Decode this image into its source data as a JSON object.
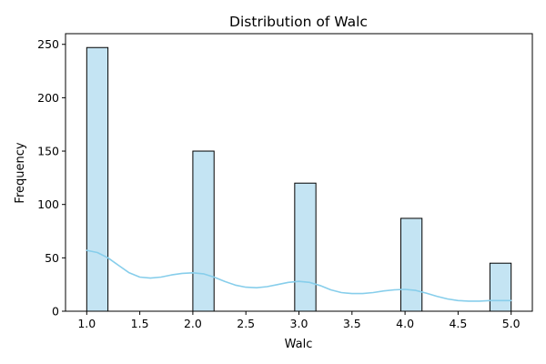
{
  "chart_data": {
    "type": "bar",
    "title": "Distribution of Walc",
    "xlabel": "Walc",
    "ylabel": "Frequency",
    "xlim": [
      0.8,
      5.2
    ],
    "ylim": [
      0,
      260
    ],
    "x_ticks": [
      1.0,
      1.5,
      2.0,
      2.5,
      3.0,
      3.5,
      4.0,
      4.5,
      5.0
    ],
    "x_tick_labels": [
      "1.0",
      "1.5",
      "2.0",
      "2.5",
      "3.0",
      "3.5",
      "4.0",
      "4.5",
      "5.0"
    ],
    "y_ticks": [
      0,
      50,
      100,
      150,
      200,
      250
    ],
    "y_tick_labels": [
      "0",
      "50",
      "100",
      "150",
      "200",
      "250"
    ],
    "bars": [
      {
        "x0": 1.0,
        "x1": 1.2,
        "value": 247
      },
      {
        "x0": 2.0,
        "x1": 2.2,
        "value": 150
      },
      {
        "x0": 2.96,
        "x1": 3.16,
        "value": 120
      },
      {
        "x0": 3.96,
        "x1": 4.16,
        "value": 87
      },
      {
        "x0": 4.8,
        "x1": 5.0,
        "value": 45
      }
    ],
    "kde": {
      "x": [
        1.0,
        1.1,
        1.2,
        1.3,
        1.4,
        1.5,
        1.6,
        1.7,
        1.8,
        1.9,
        2.0,
        2.1,
        2.2,
        2.3,
        2.4,
        2.5,
        2.6,
        2.7,
        2.8,
        2.9,
        3.0,
        3.1,
        3.2,
        3.3,
        3.4,
        3.5,
        3.6,
        3.7,
        3.8,
        3.9,
        4.0,
        4.1,
        4.2,
        4.3,
        4.4,
        4.5,
        4.6,
        4.7,
        4.8,
        4.9,
        5.0
      ],
      "y": [
        57,
        55,
        50,
        43,
        36,
        32,
        31,
        32,
        34,
        35.5,
        36,
        35,
        32,
        28,
        24.5,
        22.5,
        22,
        23,
        25,
        27,
        28,
        27,
        24,
        20,
        17.5,
        16.5,
        16.5,
        17.5,
        19,
        20,
        20.5,
        19.5,
        17,
        14,
        11.5,
        10,
        9.5,
        9.5,
        10,
        10,
        10
      ]
    },
    "grid": false,
    "legend": "none",
    "colors": {
      "bar_fill": "#c4e4f3",
      "bar_edge": "#000000",
      "kde_line": "#87ceeb",
      "axes": "#000000"
    }
  }
}
